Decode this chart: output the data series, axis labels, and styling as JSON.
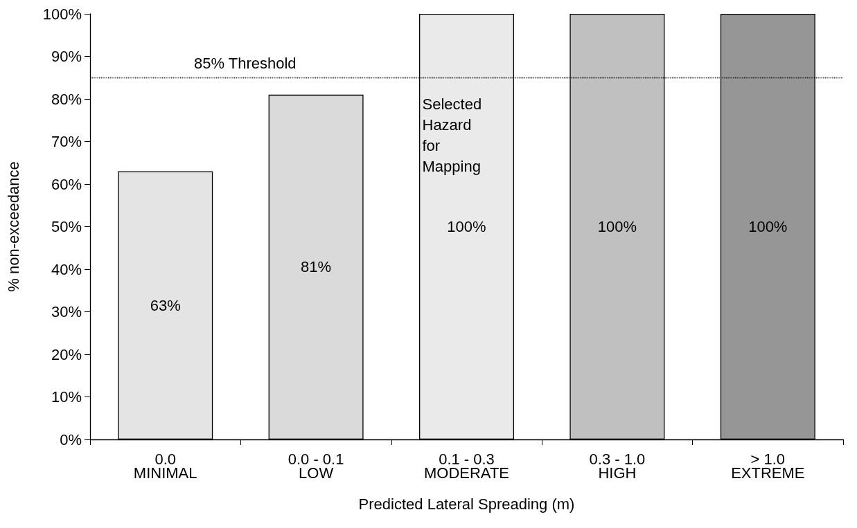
{
  "chart_data": {
    "type": "bar",
    "xlabel": "Predicted Lateral Spreading (m)",
    "ylabel": "% non-exceedance",
    "categories": [
      "0.0\nMINIMAL",
      "0.0 - 0.1\nLOW",
      "0.1 - 0.3\nMODERATE",
      "0.3 - 1.0\nHIGH",
      "> 1.0\nEXTREME"
    ],
    "values": [
      63,
      81,
      100,
      100,
      100
    ],
    "colors": [
      "#e4e4e4",
      "#dadada",
      "#eaeaea",
      "#c0c0c0",
      "#969696"
    ],
    "value_labels": [
      "63%",
      "81%",
      "100%",
      "100%",
      "100%"
    ],
    "ylim": [
      0,
      100
    ],
    "yticks": [
      {
        "value": 0,
        "label": "0%"
      },
      {
        "value": 10,
        "label": "10%"
      },
      {
        "value": 20,
        "label": "20%"
      },
      {
        "value": 30,
        "label": "30%"
      },
      {
        "value": 40,
        "label": "40%"
      },
      {
        "value": 50,
        "label": "50%"
      },
      {
        "value": 60,
        "label": "60%"
      },
      {
        "value": 70,
        "label": "70%"
      },
      {
        "value": 80,
        "label": "80%"
      },
      {
        "value": 90,
        "label": "90%"
      },
      {
        "value": 100,
        "label": "100%"
      }
    ],
    "ref_lines": [
      {
        "axis": "y",
        "value": 85,
        "label": "85% Threshold",
        "color": "#000000",
        "line_style": "dotted"
      }
    ],
    "annotations": [
      "Selected\nHazard\nfor\nMapping"
    ],
    "grid": false
  }
}
